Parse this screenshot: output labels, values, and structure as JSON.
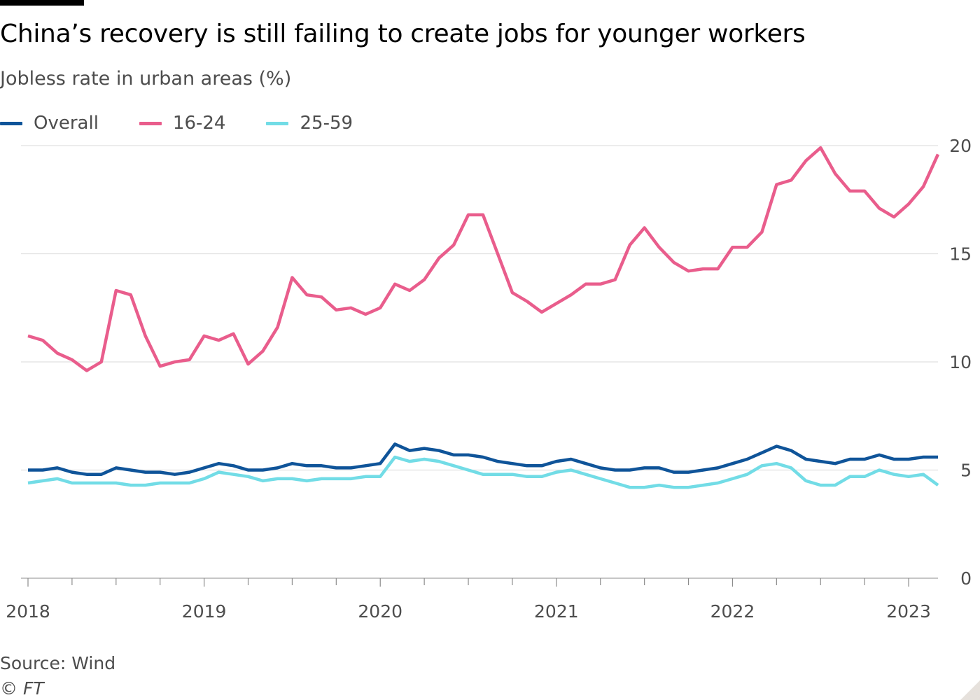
{
  "header": {
    "title": "China’s recovery is still failing to create jobs for younger workers",
    "subtitle": "Jobless rate in urban areas (%)"
  },
  "footer": {
    "source": "Source: Wind",
    "credit": "© FT"
  },
  "chart_data": {
    "type": "line",
    "title": "China’s recovery is still failing to create jobs for younger workers",
    "subtitle": "Jobless rate in urban areas (%)",
    "xlabel": "",
    "ylabel": "",
    "x_start": "2018-01",
    "x_end": "2023-03",
    "x_ticks": [
      "2018",
      "2019",
      "2020",
      "2021",
      "2022",
      "2023"
    ],
    "ylim": [
      0,
      20
    ],
    "y_ticks": [
      0,
      5,
      10,
      15,
      20
    ],
    "y_axis_position": "right",
    "grid": "horizontal",
    "legend_position": "top-left",
    "series": [
      {
        "name": "Overall",
        "color": "#0f5499",
        "values": [
          5.0,
          5.0,
          5.1,
          4.9,
          4.8,
          4.8,
          5.1,
          5.0,
          4.9,
          4.9,
          4.8,
          4.9,
          5.1,
          5.3,
          5.2,
          5.0,
          5.0,
          5.1,
          5.3,
          5.2,
          5.2,
          5.1,
          5.1,
          5.2,
          5.3,
          6.2,
          5.9,
          6.0,
          5.9,
          5.7,
          5.7,
          5.6,
          5.4,
          5.3,
          5.2,
          5.2,
          5.4,
          5.5,
          5.3,
          5.1,
          5.0,
          5.0,
          5.1,
          5.1,
          4.9,
          4.9,
          5.0,
          5.1,
          5.3,
          5.5,
          5.8,
          6.1,
          5.9,
          5.5,
          5.4,
          5.3,
          5.5,
          5.5,
          5.7,
          5.5,
          5.5,
          5.6,
          5.6
        ]
      },
      {
        "name": "16-24",
        "color": "#e95d8c",
        "values": [
          11.2,
          11.0,
          10.4,
          10.1,
          9.6,
          10.0,
          13.3,
          13.1,
          11.2,
          9.8,
          10.0,
          10.1,
          11.2,
          11.0,
          11.3,
          9.9,
          10.5,
          11.6,
          13.9,
          13.1,
          13.0,
          12.4,
          12.5,
          12.2,
          12.5,
          13.6,
          13.3,
          13.8,
          14.8,
          15.4,
          16.8,
          16.8,
          15.0,
          13.2,
          12.8,
          12.3,
          12.7,
          13.1,
          13.6,
          13.6,
          13.8,
          15.4,
          16.2,
          15.3,
          14.6,
          14.2,
          14.3,
          14.3,
          15.3,
          15.3,
          16.0,
          18.2,
          18.4,
          19.3,
          19.9,
          18.7,
          17.9,
          17.9,
          17.1,
          16.7,
          17.3,
          18.1,
          19.6
        ]
      },
      {
        "name": "25-59",
        "color": "#72dce6",
        "values": [
          4.4,
          4.5,
          4.6,
          4.4,
          4.4,
          4.4,
          4.4,
          4.3,
          4.3,
          4.4,
          4.4,
          4.4,
          4.6,
          4.9,
          4.8,
          4.7,
          4.5,
          4.6,
          4.6,
          4.5,
          4.6,
          4.6,
          4.6,
          4.7,
          4.7,
          5.6,
          5.4,
          5.5,
          5.4,
          5.2,
          5.0,
          4.8,
          4.8,
          4.8,
          4.7,
          4.7,
          4.9,
          5.0,
          4.8,
          4.6,
          4.4,
          4.2,
          4.2,
          4.3,
          4.2,
          4.2,
          4.3,
          4.4,
          4.6,
          4.8,
          5.2,
          5.3,
          5.1,
          4.5,
          4.3,
          4.3,
          4.7,
          4.7,
          5.0,
          4.8,
          4.7,
          4.8,
          4.3
        ]
      }
    ]
  }
}
